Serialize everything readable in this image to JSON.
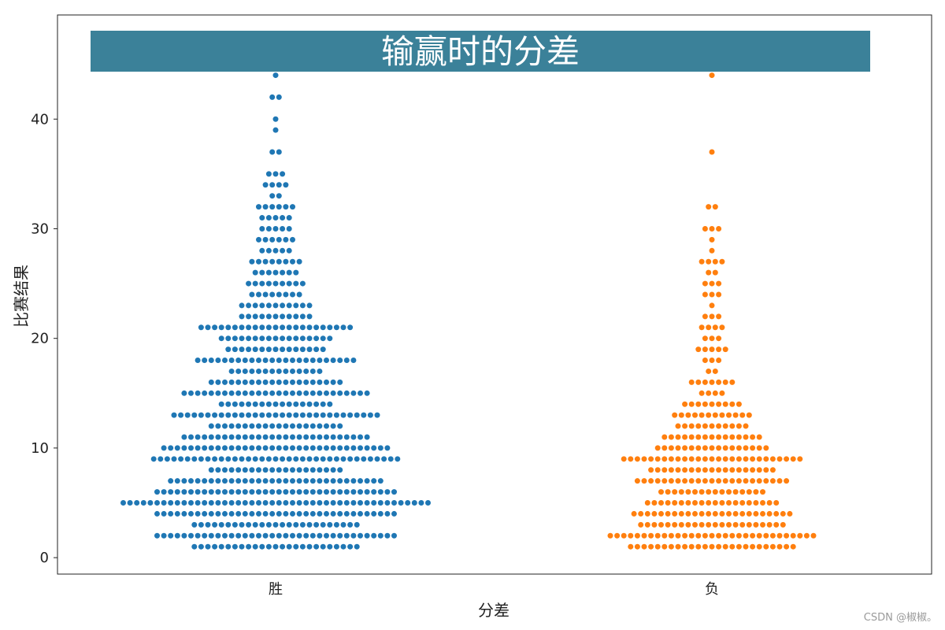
{
  "chart_data": {
    "type": "scatter",
    "subtype": "swarm",
    "title": "输赢时的分差",
    "title_box_color": "#3b8199",
    "xlabel": "分差",
    "ylabel": "比赛结果",
    "categories": [
      "胜",
      "负"
    ],
    "ylim": [
      -1.5,
      49.5
    ],
    "yticks": [
      0,
      10,
      20,
      30,
      40
    ],
    "grid": false,
    "series": [
      {
        "color": "#1f77b4",
        "counts": {
          "1": 25,
          "2": 36,
          "3": 25,
          "4": 36,
          "5": 46,
          "6": 36,
          "7": 32,
          "8": 20,
          "9": 37,
          "10": 34,
          "11": 28,
          "12": 20,
          "13": 31,
          "14": 17,
          "15": 28,
          "16": 20,
          "17": 14,
          "18": 24,
          "19": 15,
          "20": 17,
          "21": 23,
          "22": 11,
          "23": 11,
          "24": 8,
          "25": 9,
          "26": 7,
          "27": 8,
          "28": 5,
          "29": 6,
          "30": 5,
          "31": 5,
          "32": 6,
          "33": 2,
          "34": 4,
          "35": 3,
          "37": 2,
          "39": 1,
          "40": 1,
          "42": 2,
          "44": 1
        }
      },
      {
        "color": "#ff7f0e",
        "counts": {
          "1": 25,
          "2": 31,
          "3": 22,
          "4": 24,
          "5": 20,
          "6": 16,
          "7": 23,
          "8": 19,
          "9": 27,
          "10": 17,
          "11": 15,
          "12": 11,
          "13": 12,
          "14": 9,
          "15": 4,
          "16": 7,
          "17": 2,
          "18": 3,
          "19": 5,
          "20": 3,
          "21": 4,
          "22": 3,
          "23": 1,
          "24": 3,
          "25": 3,
          "26": 2,
          "27": 4,
          "28": 1,
          "29": 1,
          "30": 3,
          "32": 2,
          "37": 1,
          "44": 1
        }
      }
    ]
  },
  "watermark": "CSDN @椒椒。"
}
